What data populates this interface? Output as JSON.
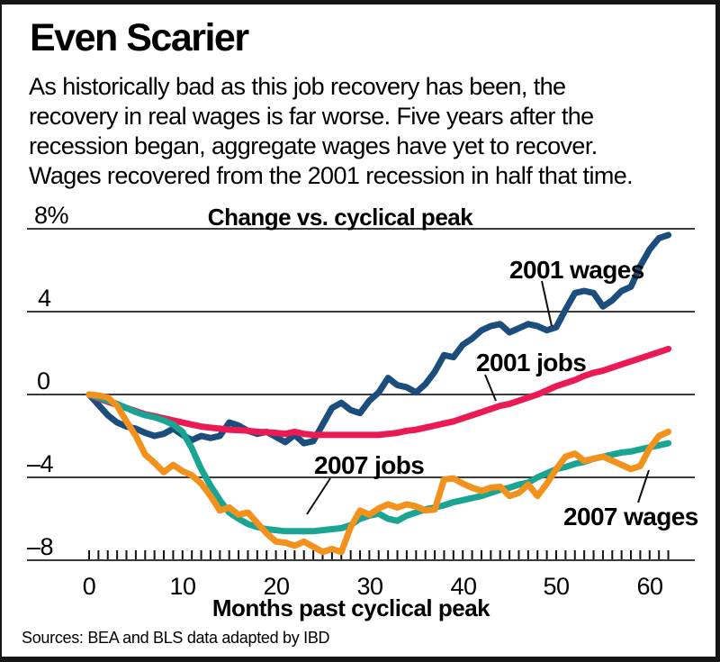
{
  "header": {
    "title": "Even Scarier",
    "subtitle": "As historically bad as this job recovery has been, the\nrecovery in real wages is far worse. Five years after the\nrecession began, aggregate wages have yet to recover.\nWages recovered from the 2001 recession in half that time."
  },
  "chart": {
    "heading": "Change vs. cyclical peak",
    "y_tick_labels": [
      "8%",
      "4",
      "0",
      "–4",
      "–8"
    ],
    "x_tick_labels": [
      "0",
      "10",
      "20",
      "30",
      "40",
      "50",
      "60"
    ],
    "x_axis_title": "Months past cyclical peak",
    "series_labels": {
      "wages_2001": "2001 wages",
      "jobs_2001": "2001 jobs",
      "jobs_2007": "2007 jobs",
      "wages_2007": "2007 wages"
    }
  },
  "footer": {
    "sources": "Sources: BEA and BLS data adapted by IBD"
  },
  "colors": {
    "wages_2001": "#1b4e7d",
    "jobs_2001": "#ec1a52",
    "jobs_2007": "#1aa593",
    "wages_2007": "#f3911d",
    "grid": "#3b3b3b",
    "axis": "#111111"
  },
  "chart_data": {
    "type": "line",
    "title": "Change vs. cyclical peak",
    "xlabel": "Months past cyclical peak",
    "ylabel": "Change vs. cyclical peak (%)",
    "ylim": [
      -8,
      8
    ],
    "y_ticks": [
      8,
      4,
      0,
      -4,
      -8
    ],
    "x_ticks_labeled": [
      0,
      10,
      20,
      30,
      40,
      50,
      60
    ],
    "grid": "horizontal",
    "legend_position": "inline-annotations",
    "x": [
      0,
      1,
      2,
      3,
      4,
      5,
      6,
      7,
      8,
      9,
      10,
      11,
      12,
      13,
      14,
      15,
      16,
      17,
      18,
      19,
      20,
      21,
      22,
      23,
      24,
      25,
      26,
      27,
      28,
      29,
      30,
      31,
      32,
      33,
      34,
      35,
      36,
      37,
      38,
      39,
      40,
      41,
      42,
      43,
      44,
      45,
      46,
      47,
      48,
      49,
      50,
      51,
      52,
      53,
      54,
      55,
      56,
      57,
      58,
      59,
      60,
      61,
      62
    ],
    "series": [
      {
        "name": "2001 wages",
        "color": "#1b4e7d",
        "values": [
          0,
          -0.5,
          -1.0,
          -1.35,
          -1.55,
          -1.65,
          -1.85,
          -2.0,
          -1.9,
          -1.65,
          -1.95,
          -2.2,
          -2.0,
          -2.1,
          -2.0,
          -1.35,
          -1.5,
          -1.75,
          -1.9,
          -1.8,
          -2.05,
          -2.3,
          -1.95,
          -2.35,
          -2.25,
          -1.45,
          -0.65,
          -0.4,
          -0.75,
          -0.9,
          -0.3,
          0.1,
          0.8,
          0.45,
          0.35,
          0.1,
          0.5,
          1.1,
          1.9,
          1.8,
          2.4,
          2.7,
          3.1,
          3.3,
          3.4,
          3.0,
          3.2,
          3.4,
          3.3,
          3.1,
          3.25,
          4.1,
          4.9,
          5.0,
          4.9,
          4.25,
          4.55,
          5.0,
          5.2,
          6.2,
          7.0,
          7.55,
          7.7
        ]
      },
      {
        "name": "2001 jobs",
        "color": "#ec1a52",
        "values": [
          0,
          -0.2,
          -0.35,
          -0.5,
          -0.65,
          -0.8,
          -0.95,
          -1.05,
          -1.15,
          -1.25,
          -1.35,
          -1.45,
          -1.55,
          -1.6,
          -1.65,
          -1.7,
          -1.72,
          -1.75,
          -1.8,
          -1.82,
          -1.85,
          -1.9,
          -1.8,
          -1.9,
          -1.95,
          -1.95,
          -1.95,
          -1.95,
          -1.95,
          -1.95,
          -1.95,
          -1.95,
          -1.9,
          -1.85,
          -1.75,
          -1.7,
          -1.6,
          -1.5,
          -1.4,
          -1.3,
          -1.15,
          -1.0,
          -0.85,
          -0.7,
          -0.55,
          -0.45,
          -0.3,
          -0.15,
          0.0,
          0.2,
          0.4,
          0.55,
          0.7,
          0.9,
          1.05,
          1.15,
          1.3,
          1.45,
          1.6,
          1.75,
          1.9,
          2.05,
          2.2
        ]
      },
      {
        "name": "2007 jobs",
        "color": "#1aa593",
        "values": [
          0,
          -0.15,
          -0.3,
          -0.45,
          -0.65,
          -0.85,
          -1.0,
          -1.1,
          -1.25,
          -1.45,
          -1.8,
          -2.6,
          -3.6,
          -4.4,
          -5.1,
          -5.7,
          -6.0,
          -6.25,
          -6.4,
          -6.5,
          -6.55,
          -6.6,
          -6.6,
          -6.6,
          -6.6,
          -6.55,
          -6.5,
          -6.45,
          -6.3,
          -6.0,
          -5.85,
          -5.75,
          -6.0,
          -6.1,
          -5.85,
          -5.7,
          -5.55,
          -5.45,
          -5.35,
          -5.2,
          -5.1,
          -5.0,
          -4.9,
          -4.75,
          -4.6,
          -4.5,
          -4.35,
          -4.25,
          -4.0,
          -3.8,
          -3.6,
          -3.5,
          -3.35,
          -3.25,
          -3.1,
          -3.0,
          -2.9,
          -2.8,
          -2.75,
          -2.65,
          -2.55,
          -2.45,
          -2.35
        ]
      },
      {
        "name": "2007 wages",
        "color": "#f3911d",
        "values": [
          0,
          -0.05,
          -0.15,
          -0.55,
          -1.3,
          -2.0,
          -2.9,
          -3.3,
          -3.75,
          -3.4,
          -3.7,
          -3.9,
          -4.3,
          -4.9,
          -5.6,
          -5.45,
          -5.8,
          -5.7,
          -6.2,
          -6.7,
          -7.1,
          -7.15,
          -7.3,
          -7.1,
          -7.35,
          -7.6,
          -7.45,
          -7.6,
          -6.4,
          -5.6,
          -5.8,
          -5.5,
          -5.3,
          -5.45,
          -5.3,
          -5.4,
          -5.6,
          -5.55,
          -4.1,
          -4.05,
          -4.3,
          -4.5,
          -4.65,
          -4.5,
          -4.45,
          -4.9,
          -4.75,
          -4.35,
          -4.9,
          -4.3,
          -3.6,
          -3.0,
          -2.85,
          -3.2,
          -3.1,
          -3.0,
          -3.2,
          -3.4,
          -3.6,
          -3.45,
          -2.6,
          -2.0,
          -1.8
        ]
      }
    ]
  }
}
